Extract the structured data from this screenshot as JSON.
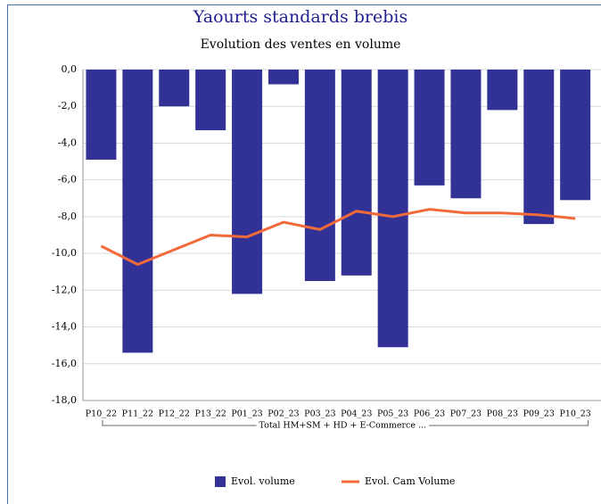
{
  "chart_data": {
    "type": "bar",
    "title": "Yaourts standards brebis",
    "subtitle": "Evolution des ventes en volume",
    "group_label": "Total HM+SM + HD + E-Commerce ...",
    "categories": [
      "P10_22",
      "P11_22",
      "P12_22",
      "P13_22",
      "P01_23",
      "P02_23",
      "P03_23",
      "P04_23",
      "P05_23",
      "P06_23",
      "P07_23",
      "P08_23",
      "P09_23",
      "P10_23"
    ],
    "series": [
      {
        "name": "Evol. volume",
        "type": "bar",
        "color": "#323296",
        "values": [
          -4.9,
          -15.4,
          -2.0,
          -3.3,
          -12.2,
          -0.8,
          -11.5,
          -11.2,
          -15.1,
          -6.3,
          -7.0,
          -2.2,
          -8.4,
          -7.1
        ]
      },
      {
        "name": "Evol. Cam Volume",
        "type": "line",
        "color": "#f26a3a",
        "values": [
          -9.6,
          -10.6,
          -9.8,
          -9.0,
          -9.1,
          -8.3,
          -8.7,
          -7.7,
          -8.0,
          -7.6,
          -7.8,
          -7.8,
          -7.9,
          -8.1
        ]
      }
    ],
    "ylim": [
      -18,
      0
    ],
    "yticks": [
      {
        "value": 0,
        "label": "0,0"
      },
      {
        "value": -2,
        "label": "-2,0"
      },
      {
        "value": -4,
        "label": "-4,0"
      },
      {
        "value": -6,
        "label": "-6,0"
      },
      {
        "value": -8,
        "label": "-8,0"
      },
      {
        "value": -10,
        "label": "-10,0"
      },
      {
        "value": -12,
        "label": "-12,0"
      },
      {
        "value": -14,
        "label": "-14,0"
      },
      {
        "value": -16,
        "label": "-16,0"
      },
      {
        "value": -18,
        "label": "-18,0"
      }
    ],
    "grid": true
  }
}
